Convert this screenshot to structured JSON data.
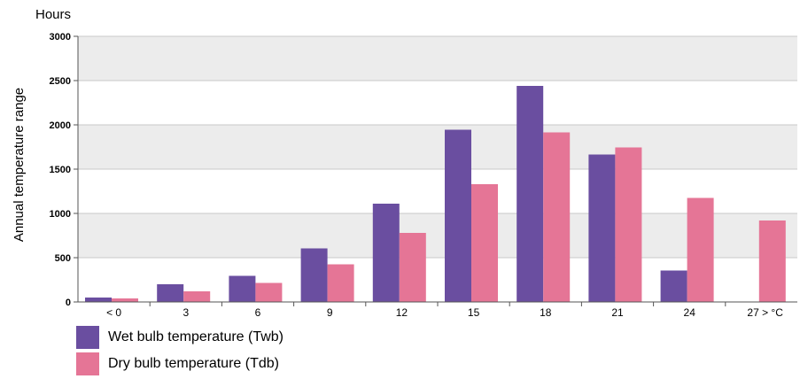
{
  "chart_data": {
    "type": "bar",
    "title": "Hours",
    "ylabel": "Annual temperature range",
    "xlabel": "",
    "ylim": [
      0,
      3000
    ],
    "yticks": [
      0,
      500,
      1000,
      1500,
      2000,
      2500,
      3000
    ],
    "categories": [
      "< 0",
      "3",
      "6",
      "9",
      "12",
      "15",
      "18",
      "21",
      "24",
      "27 > °C"
    ],
    "series": [
      {
        "name": "Wet bulb temperature (Twb)",
        "color": "#6a4ea0",
        "values": [
          50,
          200,
          295,
          605,
          1110,
          1945,
          2440,
          1665,
          355,
          0
        ]
      },
      {
        "name": "Dry bulb temperature (Tdb)",
        "color": "#e57596",
        "values": [
          40,
          120,
          215,
          425,
          780,
          1330,
          1915,
          1745,
          1175,
          920
        ]
      }
    ],
    "grid": true,
    "legend": "bottom-left"
  }
}
